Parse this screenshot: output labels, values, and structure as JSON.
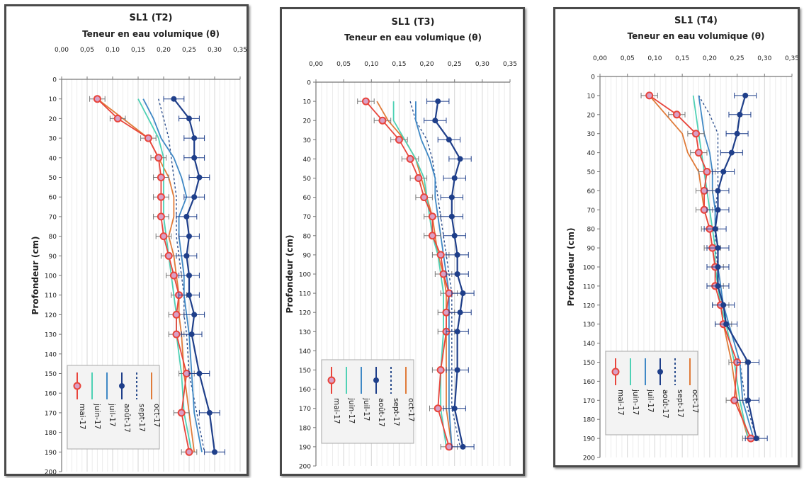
{
  "chart_data": [
    {
      "type": "line",
      "title": "SL1 (T2)",
      "xlabel": "Teneur en eau volumique (θ)",
      "ylabel": "Profondeur (cm)",
      "xlim": [
        0,
        0.35
      ],
      "ylim": [
        0,
        200
      ],
      "x_ticks": [
        "0,00",
        "0,05",
        "0,10",
        "0,15",
        "0,20",
        "0,25",
        "0,30",
        "0,35"
      ],
      "y_ticks": [
        "0",
        "10",
        "20",
        "30",
        "40",
        "50",
        "60",
        "70",
        "80",
        "90",
        "100",
        "110",
        "120",
        "130",
        "140",
        "150",
        "160",
        "170",
        "180",
        "190",
        "200"
      ],
      "x_axis_position": "top",
      "y_inverted": true,
      "grid": true,
      "legend_position": "bottom-left",
      "series": [
        {
          "name": "mai-17",
          "depth": [
            10,
            20,
            30,
            40,
            50,
            60,
            70,
            80,
            90,
            100,
            110,
            120,
            130,
            150,
            170,
            190
          ],
          "values": [
            0.07,
            0.11,
            0.17,
            0.19,
            0.195,
            0.195,
            0.195,
            0.2,
            0.21,
            0.22,
            0.23,
            0.225,
            0.225,
            0.245,
            0.235,
            0.25
          ]
        },
        {
          "name": "juin-17",
          "depth": [
            10,
            20,
            30,
            40,
            50,
            60,
            70,
            80,
            90,
            100,
            110,
            120,
            130,
            150,
            170,
            190
          ],
          "values": [
            0.15,
            0.17,
            0.19,
            0.2,
            0.2,
            0.2,
            0.2,
            0.205,
            0.21,
            0.215,
            0.22,
            0.225,
            0.225,
            0.235,
            0.24,
            0.255
          ]
        },
        {
          "name": "juil-17",
          "depth": [
            10,
            20,
            30,
            40,
            50,
            60,
            70,
            80,
            90,
            100,
            110,
            120,
            130,
            150,
            170,
            190
          ],
          "values": [
            0.16,
            0.18,
            0.195,
            0.22,
            0.235,
            0.245,
            0.23,
            0.23,
            0.235,
            0.24,
            0.24,
            0.245,
            0.25,
            0.255,
            0.26,
            0.275
          ]
        },
        {
          "name": "août-17",
          "error_bar": 0.02,
          "depth": [
            10,
            20,
            30,
            40,
            50,
            60,
            70,
            80,
            90,
            100,
            110,
            120,
            130,
            150,
            170,
            190
          ],
          "values": [
            0.22,
            0.25,
            0.26,
            0.26,
            0.27,
            0.26,
            0.245,
            0.25,
            0.245,
            0.25,
            0.25,
            0.26,
            0.255,
            0.27,
            0.29,
            0.3
          ]
        },
        {
          "name": "sept-17",
          "depth": [
            10,
            20,
            30,
            40,
            50,
            60,
            70,
            80,
            90,
            100,
            110,
            120,
            130,
            150,
            170,
            190
          ],
          "values": [
            0.19,
            0.2,
            0.21,
            0.215,
            0.22,
            0.225,
            0.225,
            0.225,
            0.23,
            0.235,
            0.24,
            0.24,
            0.245,
            0.25,
            0.265,
            0.28
          ]
        },
        {
          "name": "oct-17",
          "depth": [
            10,
            20,
            30,
            40,
            50,
            60,
            70,
            80,
            90,
            100,
            110,
            120,
            130,
            150,
            170,
            190
          ],
          "values": [
            0.07,
            0.12,
            0.17,
            0.19,
            0.21,
            0.22,
            0.22,
            0.21,
            0.22,
            0.225,
            0.23,
            0.23,
            0.235,
            0.24,
            0.25,
            0.26
          ]
        }
      ]
    },
    {
      "type": "line",
      "title": "SL1 (T3)",
      "xlabel": "Teneur en eau volumique (θ)",
      "ylabel": "Profondeur (cm)",
      "xlim": [
        0,
        0.35
      ],
      "ylim": [
        0,
        200
      ],
      "x_ticks": [
        "0,00",
        "0,05",
        "0,10",
        "0,15",
        "0,20",
        "0,25",
        "0,30",
        "0,35"
      ],
      "y_ticks": [
        "0",
        "10",
        "20",
        "30",
        "40",
        "50",
        "60",
        "70",
        "80",
        "90",
        "100",
        "110",
        "120",
        "130",
        "140",
        "150",
        "160",
        "170",
        "180",
        "190",
        "200"
      ],
      "x_axis_position": "top",
      "y_inverted": true,
      "grid": true,
      "legend_position": "bottom-left",
      "series": [
        {
          "name": "mai-17",
          "depth": [
            10,
            20,
            30,
            40,
            50,
            60,
            70,
            80,
            90,
            100,
            110,
            120,
            130,
            150,
            170,
            190
          ],
          "values": [
            0.09,
            0.12,
            0.15,
            0.17,
            0.185,
            0.195,
            0.21,
            0.21,
            0.225,
            0.23,
            0.24,
            0.235,
            0.235,
            0.225,
            0.22,
            0.24
          ]
        },
        {
          "name": "juin-17",
          "depth": [
            10,
            20,
            30,
            40,
            50,
            60,
            70,
            80,
            90,
            100,
            110,
            120,
            130,
            150,
            170,
            190
          ],
          "values": [
            0.14,
            0.14,
            0.16,
            0.18,
            0.195,
            0.2,
            0.205,
            0.21,
            0.22,
            0.225,
            0.23,
            0.23,
            0.23,
            0.225,
            0.225,
            0.235
          ]
        },
        {
          "name": "juil-17",
          "depth": [
            10,
            20,
            30,
            40,
            50,
            60,
            70,
            80,
            90,
            100,
            110,
            120,
            130,
            150,
            170,
            190
          ],
          "values": [
            0.18,
            0.18,
            0.19,
            0.205,
            0.215,
            0.215,
            0.22,
            0.225,
            0.23,
            0.235,
            0.24,
            0.24,
            0.24,
            0.24,
            0.24,
            0.245
          ]
        },
        {
          "name": "août-17",
          "error_bar": 0.02,
          "depth": [
            10,
            20,
            30,
            40,
            50,
            60,
            70,
            80,
            90,
            100,
            110,
            120,
            130,
            150,
            170,
            190
          ],
          "values": [
            0.22,
            0.215,
            0.24,
            0.26,
            0.25,
            0.245,
            0.245,
            0.25,
            0.255,
            0.255,
            0.265,
            0.26,
            0.255,
            0.255,
            0.25,
            0.265
          ]
        },
        {
          "name": "sept-17",
          "depth": [
            10,
            20,
            30,
            40,
            50,
            60,
            70,
            80,
            90,
            100,
            110,
            120,
            130,
            150,
            170,
            190
          ],
          "values": [
            0.17,
            0.18,
            0.2,
            0.21,
            0.215,
            0.22,
            0.225,
            0.23,
            0.235,
            0.24,
            0.245,
            0.245,
            0.245,
            0.245,
            0.245,
            0.26
          ]
        },
        {
          "name": "oct-17",
          "depth": [
            10,
            20,
            30,
            40,
            50,
            60,
            70,
            80,
            90,
            100,
            110,
            120,
            130,
            150,
            170,
            190
          ],
          "values": [
            0.11,
            0.13,
            0.16,
            0.18,
            0.19,
            0.2,
            0.21,
            0.215,
            0.22,
            0.23,
            0.235,
            0.235,
            0.235,
            0.235,
            0.235,
            0.245
          ]
        }
      ]
    },
    {
      "type": "line",
      "title": "SL1 (T4)",
      "xlabel": "Teneur en eau volumique (θ)",
      "ylabel": "Profondeur (cm)",
      "xlim": [
        0,
        0.35
      ],
      "ylim": [
        0,
        200
      ],
      "x_ticks": [
        "0,00",
        "0,05",
        "0,10",
        "0,15",
        "0,20",
        "0,25",
        "0,30",
        "0,35"
      ],
      "y_ticks": [
        "0",
        "10",
        "20",
        "30",
        "40",
        "50",
        "60",
        "70",
        "80",
        "90",
        "100",
        "110",
        "120",
        "130",
        "140",
        "150",
        "160",
        "170",
        "180",
        "190",
        "200"
      ],
      "x_axis_position": "top",
      "y_inverted": true,
      "grid": true,
      "legend_position": "bottom-left",
      "series": [
        {
          "name": "mai-17",
          "depth": [
            10,
            20,
            30,
            40,
            50,
            60,
            70,
            80,
            90,
            100,
            110,
            120,
            130,
            150,
            170,
            190
          ],
          "values": [
            0.09,
            0.14,
            0.175,
            0.18,
            0.195,
            0.19,
            0.19,
            0.2,
            0.205,
            0.21,
            0.21,
            0.22,
            0.225,
            0.25,
            0.245,
            0.275
          ]
        },
        {
          "name": "juin-17",
          "depth": [
            10,
            20,
            30,
            40,
            50,
            60,
            70,
            80,
            90,
            100,
            110,
            120,
            130,
            150,
            170,
            190
          ],
          "values": [
            0.17,
            0.175,
            0.18,
            0.185,
            0.19,
            0.195,
            0.2,
            0.205,
            0.21,
            0.21,
            0.215,
            0.22,
            0.23,
            0.245,
            0.255,
            0.27
          ]
        },
        {
          "name": "juil-17",
          "depth": [
            10,
            20,
            30,
            40,
            50,
            60,
            70,
            80,
            90,
            100,
            110,
            120,
            130,
            150,
            170,
            190
          ],
          "values": [
            0.18,
            0.185,
            0.19,
            0.2,
            0.205,
            0.205,
            0.21,
            0.21,
            0.215,
            0.215,
            0.22,
            0.225,
            0.235,
            0.255,
            0.26,
            0.28
          ]
        },
        {
          "name": "août-17",
          "error_bar": 0.02,
          "depth": [
            10,
            20,
            30,
            40,
            50,
            60,
            70,
            80,
            90,
            100,
            110,
            120,
            130,
            150,
            170,
            190
          ],
          "values": [
            0.265,
            0.255,
            0.25,
            0.24,
            0.225,
            0.215,
            0.215,
            0.21,
            0.215,
            0.215,
            0.215,
            0.225,
            0.23,
            0.27,
            0.27,
            0.285
          ]
        },
        {
          "name": "sept-17",
          "depth": [
            10,
            20,
            30,
            40,
            50,
            60,
            70,
            80,
            90,
            100,
            110,
            120,
            130,
            150,
            170,
            190
          ],
          "values": [
            0.18,
            0.2,
            0.215,
            0.215,
            0.215,
            0.215,
            0.21,
            0.21,
            0.21,
            0.215,
            0.22,
            0.225,
            0.235,
            0.255,
            0.265,
            0.285
          ]
        },
        {
          "name": "oct-17",
          "depth": [
            10,
            20,
            30,
            40,
            50,
            60,
            70,
            80,
            90,
            100,
            110,
            120,
            130,
            150,
            170,
            190
          ],
          "values": [
            0.09,
            0.12,
            0.15,
            0.16,
            0.18,
            0.185,
            0.19,
            0.2,
            0.205,
            0.21,
            0.215,
            0.22,
            0.225,
            0.24,
            0.25,
            0.27
          ]
        }
      ]
    }
  ],
  "series_colors": {
    "mai-17": "#e8453c",
    "juin-17": "#4fd1b5",
    "juil-17": "#3f88c5",
    "août-17": "#1f3f8a",
    "sept-17": "#2d4f8e",
    "oct-17": "#e07b39"
  },
  "marker_fill_mai": "#d9a0c6"
}
